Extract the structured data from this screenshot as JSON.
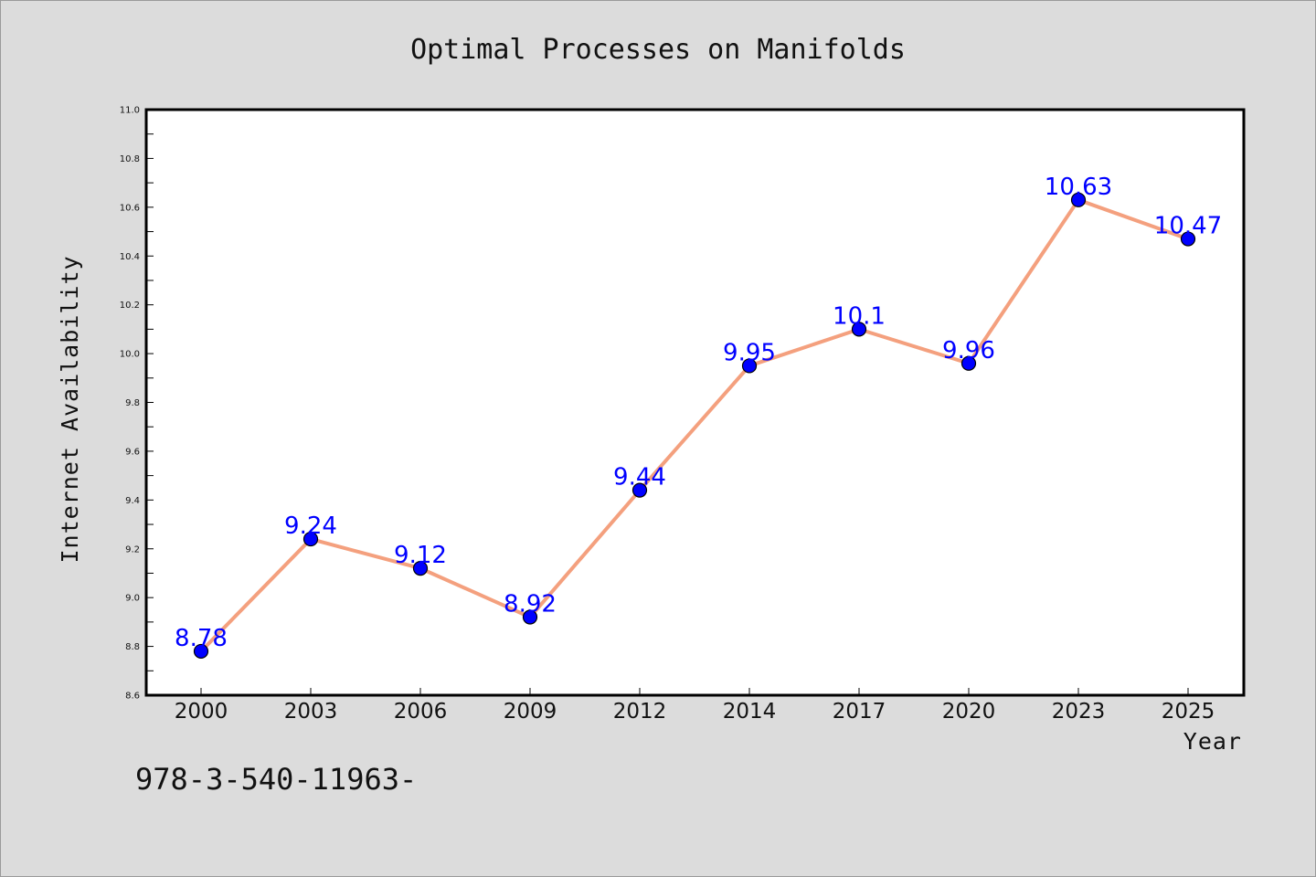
{
  "chart_data": {
    "type": "line",
    "title": "Optimal Processes on Manifolds",
    "xlabel": "Year",
    "ylabel": "Internet Availability",
    "categories": [
      "2000",
      "2003",
      "2006",
      "2009",
      "2012",
      "2014",
      "2017",
      "2020",
      "2023",
      "2025"
    ],
    "series": [
      {
        "values": [
          8.78,
          9.24,
          9.12,
          8.92,
          9.44,
          9.95,
          10.1,
          9.96,
          10.63,
          10.47
        ],
        "line_color": "#f4a07e",
        "marker_color": "#0000ff"
      }
    ],
    "data_labels": [
      "8.78",
      "9.24",
      "9.12",
      "8.92",
      "9.44",
      "9.95",
      "10.1",
      "9.96",
      "10.63",
      "10.47"
    ],
    "ylim": [
      8.6,
      11.0
    ],
    "yticks": [
      "8.6",
      "8.8",
      "9.0",
      "9.2",
      "9.4",
      "9.6",
      "9.8",
      "10.0",
      "10.2",
      "10.4",
      "10.6",
      "10.8",
      "11.0"
    ],
    "grid": false,
    "legend": "none"
  },
  "footer_text": "978-3-540-11963-",
  "colors": {
    "background": "#dcdcdc",
    "plot_area": "#ffffff",
    "line": "#f4a07e",
    "marker": "#0000ff",
    "data_label": "#0000ff"
  }
}
